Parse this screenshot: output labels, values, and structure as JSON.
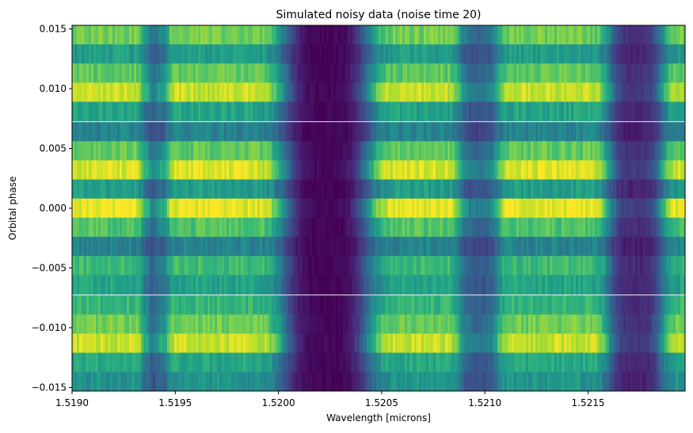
{
  "chart_data": {
    "type": "heatmap",
    "title": "Simulated noisy data (noise time 20)",
    "xlabel": "Wavelength [microns]",
    "ylabel": "Orbital phase",
    "xlim": [
      1.519,
      1.52197
    ],
    "ylim": [
      -0.0153,
      0.0153
    ],
    "grid": false,
    "colormap": "viridis",
    "x_ticks": [
      {
        "value": 1.519,
        "label": "1.5190"
      },
      {
        "value": 1.5195,
        "label": "1.5195"
      },
      {
        "value": 1.52,
        "label": "1.5200"
      },
      {
        "value": 1.5205,
        "label": "1.5205"
      },
      {
        "value": 1.521,
        "label": "1.5210"
      },
      {
        "value": 1.5215,
        "label": "1.5215"
      }
    ],
    "y_ticks": [
      {
        "value": 0.015,
        "label": "0.015"
      },
      {
        "value": 0.01,
        "label": "0.010"
      },
      {
        "value": 0.005,
        "label": "0.005"
      },
      {
        "value": 0.0,
        "label": "0.000"
      },
      {
        "value": -0.005,
        "label": "−0.005"
      },
      {
        "value": -0.01,
        "label": "−0.010"
      },
      {
        "value": -0.015,
        "label": "−0.015"
      }
    ],
    "phase_rows": [
      {
        "phase": 0.0145,
        "level": 0.78
      },
      {
        "phase": 0.0129,
        "level": 0.55
      },
      {
        "phase": 0.0113,
        "level": 0.75
      },
      {
        "phase": 0.0097,
        "level": 0.92
      },
      {
        "phase": 0.0081,
        "level": 0.58
      },
      {
        "phase": 0.0064,
        "level": 0.45
      },
      {
        "phase": 0.0048,
        "level": 0.76
      },
      {
        "phase": 0.0032,
        "level": 0.95
      },
      {
        "phase": 0.0016,
        "level": 0.55
      },
      {
        "phase": 0.0,
        "level": 0.97
      },
      {
        "phase": -0.0016,
        "level": 0.72
      },
      {
        "phase": -0.0032,
        "level": 0.45
      },
      {
        "phase": -0.0048,
        "level": 0.68
      },
      {
        "phase": -0.0064,
        "level": 0.58
      },
      {
        "phase": -0.0081,
        "level": 0.66
      },
      {
        "phase": -0.0097,
        "level": 0.78
      },
      {
        "phase": -0.0113,
        "level": 0.92
      },
      {
        "phase": -0.0129,
        "level": 0.6
      },
      {
        "phase": -0.0145,
        "level": 0.52
      }
    ],
    "absorption_lines": [
      {
        "center": 1.51937,
        "width": 4e-05,
        "depth": 0.28
      },
      {
        "center": 1.51942,
        "width": 5e-05,
        "depth": 0.38
      },
      {
        "center": 1.52023,
        "width": 0.00022,
        "depth": 0.98
      },
      {
        "center": 1.52097,
        "width": 0.0001,
        "depth": 0.55
      },
      {
        "center": 1.52173,
        "width": 0.00014,
        "depth": 0.82
      }
    ]
  }
}
